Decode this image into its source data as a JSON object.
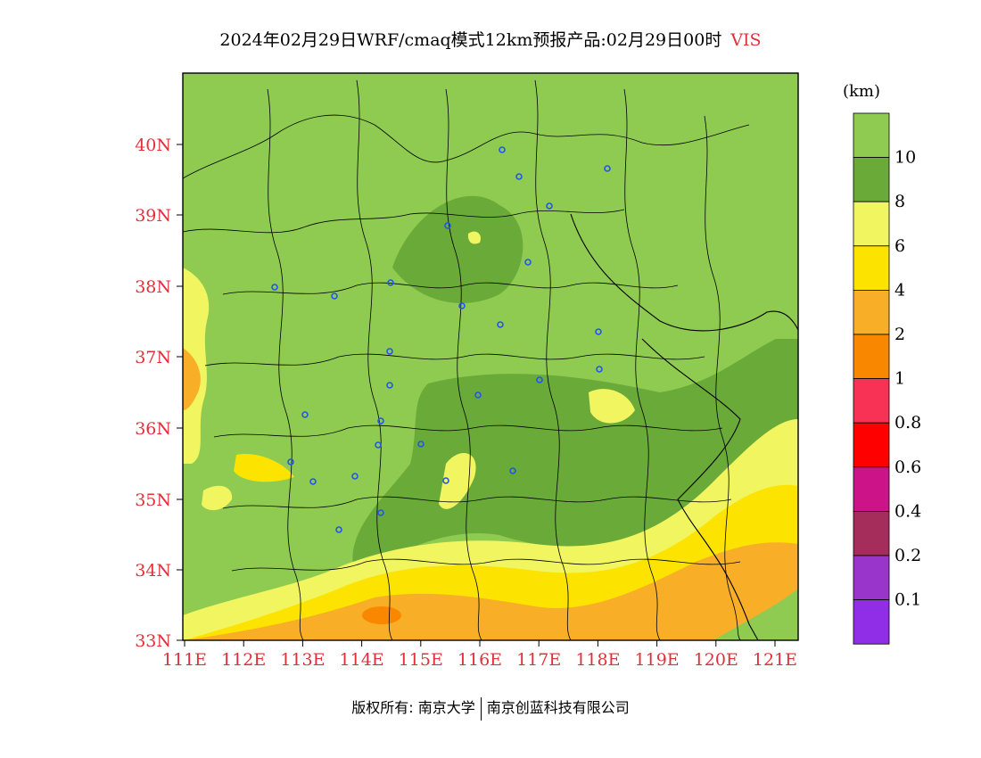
{
  "title": {
    "main": "2024年02月29日WRF/cmaq模式12km预报产品:02月29日00时",
    "variable": "VIS"
  },
  "map": {
    "lat_ticks": [
      "40N",
      "39N",
      "38N",
      "37N",
      "36N",
      "35N",
      "34N",
      "33N"
    ],
    "lon_ticks": [
      "111E",
      "112E",
      "113E",
      "114E",
      "115E",
      "116E",
      "117E",
      "118E",
      "119E",
      "120E",
      "121E"
    ],
    "tick_color": "#e0303a"
  },
  "legend": {
    "unit": "(km)",
    "levels": [
      {
        "label": "10",
        "color": "#8ecb50"
      },
      {
        "label": "8",
        "color": "#6aaa38"
      },
      {
        "label": "6",
        "color": "#f1f560"
      },
      {
        "label": "4",
        "color": "#fce300"
      },
      {
        "label": "2",
        "color": "#f9ae28"
      },
      {
        "label": "1",
        "color": "#f98700"
      },
      {
        "label": "0.8",
        "color": "#f83254"
      },
      {
        "label": "0.6",
        "color": "#ff0000"
      },
      {
        "label": "0.4",
        "color": "#cc1388"
      },
      {
        "label": "0.2",
        "color": "#a52d5b"
      },
      {
        "label": "0.1",
        "color": "#9a35cc"
      },
      {
        "label": "",
        "color": "#8f2ee6"
      }
    ]
  },
  "footer": {
    "copyright": "版权所有: 南京大学",
    "company": "南京创蓝科技有限公司"
  }
}
